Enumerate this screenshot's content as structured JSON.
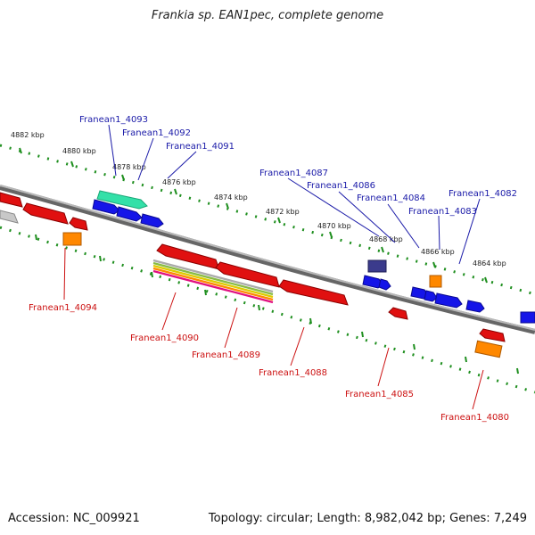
{
  "title": "Frankia sp. EAN1pec, complete genome",
  "footer": {
    "accession": "Accession: NC_009921",
    "summary": "Topology: circular; Length: 8,982,042 bp; Genes: 7,249"
  },
  "colors": {
    "strand_plus_label": "#1a1aa8",
    "strand_minus_label": "#cc1111",
    "backbone": "#7f7f7f",
    "scale_dots": "#1f8f1f"
  },
  "kbp_ticks": [
    "4882 kbp",
    "4880 kbp",
    "4878 kbp",
    "4876 kbp",
    "4874 kbp",
    "4872 kbp",
    "4870 kbp",
    "4868 kbp",
    "4866 kbp",
    "4864 kbp"
  ],
  "gene_labels_top": [
    "Franean1_4093",
    "Franean1_4092",
    "Franean1_4091",
    "Franean1_4087",
    "Franean1_4086",
    "Franean1_4084",
    "Franean1_4083",
    "Franean1_4082"
  ],
  "gene_labels_bottom": [
    "Franean1_4094",
    "Franean1_4090",
    "Franean1_4089",
    "Franean1_4088",
    "Franean1_4085",
    "Franean1_4080"
  ]
}
